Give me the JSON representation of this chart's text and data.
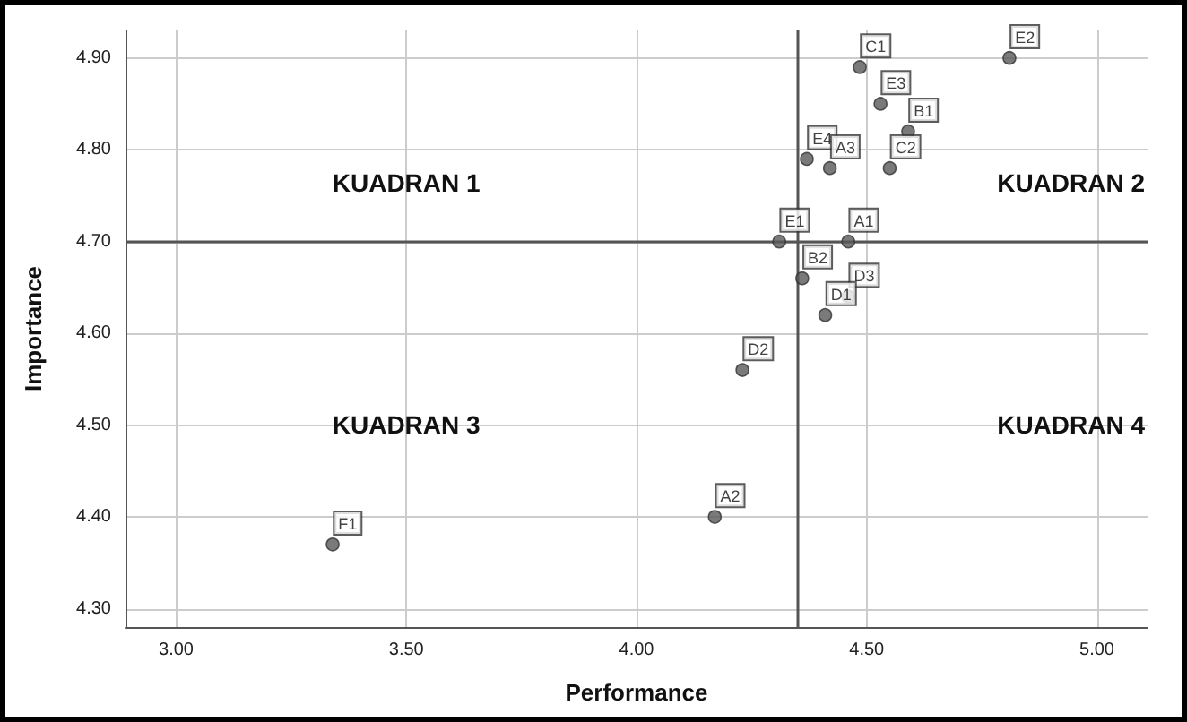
{
  "chart_data": {
    "type": "scatter",
    "xlabel": "Performance",
    "ylabel": "Importance",
    "x": [
      4.485,
      4.81,
      4.53,
      4.59,
      4.37,
      4.42,
      4.55,
      4.31,
      4.46,
      4.36,
      4.46,
      4.41,
      4.23,
      4.17,
      3.34
    ],
    "series": [
      {
        "color": "#595959",
        "values": [
          4.89,
          4.9,
          4.85,
          4.82,
          4.79,
          4.78,
          4.78,
          4.7,
          4.7,
          4.66,
          4.64,
          4.62,
          4.56,
          4.4,
          4.37
        ],
        "value_labels": [
          "C1",
          "E2",
          "E3",
          "B1",
          "E4",
          "A3",
          "C2",
          "E1",
          "A1",
          "B2",
          "D3",
          "D1",
          "D2",
          "A2",
          "F1"
        ]
      }
    ],
    "xlim": [
      2.89,
      5.11
    ],
    "xticks": [
      {
        "value": 3,
        "label": "3.00"
      },
      {
        "value": 3.5,
        "label": "3.50"
      },
      {
        "value": 4,
        "label": "4.00"
      },
      {
        "value": 4.5,
        "label": "4.50"
      },
      {
        "value": 5,
        "label": "5.00"
      }
    ],
    "ylim": [
      4.28,
      4.93
    ],
    "yticks": [
      {
        "value": 4.3,
        "label": "4.30"
      },
      {
        "value": 4.4,
        "label": "4.40"
      },
      {
        "value": 4.5,
        "label": "4.50"
      },
      {
        "value": 4.6,
        "label": "4.60"
      },
      {
        "value": 4.7,
        "label": "4.70"
      },
      {
        "value": 4.8,
        "label": "4.80"
      },
      {
        "value": 4.9,
        "label": "4.90"
      }
    ],
    "ref_lines": [
      {
        "axis": "x",
        "value": 4.35,
        "color": "#555555"
      },
      {
        "axis": "y",
        "value": 4.7,
        "color": "#555555"
      }
    ],
    "annotations": [
      "KUADRAN 1",
      "KUADRAN 2",
      "KUADRAN 3",
      "KUADRAN 4"
    ],
    "grid": true,
    "marker": "circle"
  }
}
